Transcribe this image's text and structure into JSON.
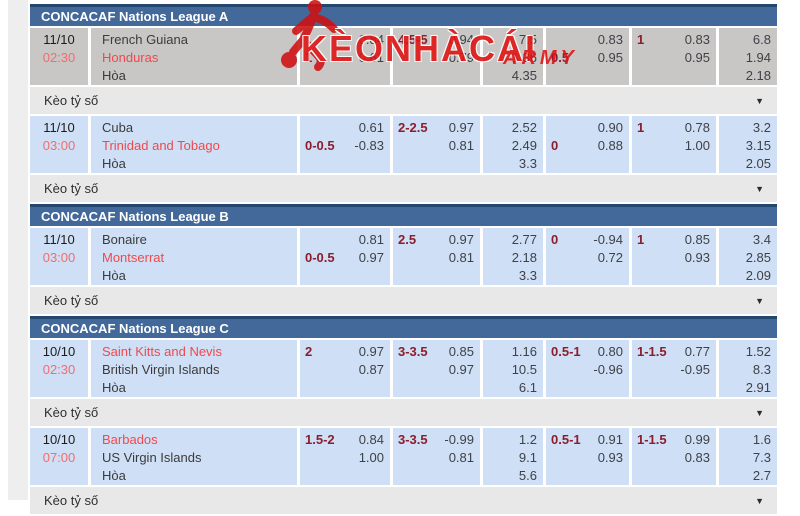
{
  "watermark": {
    "brand": "KèoNhàCái",
    "suffix": "ARMY"
  },
  "score_bet_label": "Kèo tỷ số",
  "icons": {
    "chevron_down": "▼",
    "footballer": "footballer-kicking-ball"
  },
  "colors": {
    "header_bg": "#43689a",
    "header_border": "#24476f",
    "row_gray": "#c9c6c6",
    "row_blue": "#cfdff5",
    "keo_bg": "#e9e8e8",
    "favorite_red": "#f0494d",
    "time_red": "#f26d6d",
    "handicap_maroon": "#8b1e2d",
    "watermark_red": "#e01212"
  },
  "sections": [
    {
      "title": "CONCACAF Nations League A",
      "matches": [
        {
          "date": "11/10",
          "time": "02:30",
          "home": "French Guiana",
          "away": "Honduras",
          "draw": "Hòa",
          "red": "away",
          "bg": "gray",
          "hc": {
            "val": "1",
            "line": 2,
            "o1": "0.84",
            "o2": "0.61"
          },
          "ou": {
            "val": "4.5-5",
            "line": 1,
            "o1": "0.94",
            "o2": "0.79"
          },
          "x12": [
            "7.5",
            "1.36",
            "4.35"
          ],
          "hc2": {
            "val": "0.5",
            "line": 2,
            "o1": "0.83",
            "o2": "0.95"
          },
          "hc3": {
            "val": "1",
            "line": 1,
            "o1": "0.83",
            "o2": "0.95"
          },
          "x12b": [
            "6.8",
            "1.94",
            "2.18"
          ]
        },
        {
          "date": "11/10",
          "time": "03:00",
          "home": "Cuba",
          "away": "Trinidad and Tobago",
          "draw": "Hòa",
          "red": "away",
          "bg": "blue",
          "hc": {
            "val": "0-0.5",
            "line": 2,
            "o1": "0.61",
            "o2": "-0.83"
          },
          "ou": {
            "val": "2-2.5",
            "line": 1,
            "o1": "0.97",
            "o2": "0.81"
          },
          "x12": [
            "2.52",
            "2.49",
            "3.3"
          ],
          "hc2": {
            "val": "0",
            "line": 2,
            "o1": "0.90",
            "o2": "0.88"
          },
          "hc3": {
            "val": "1",
            "line": 1,
            "o1": "0.78",
            "o2": "1.00"
          },
          "x12b": [
            "3.2",
            "3.15",
            "2.05"
          ]
        }
      ]
    },
    {
      "title": "CONCACAF Nations League B",
      "matches": [
        {
          "date": "11/10",
          "time": "03:00",
          "home": "Bonaire",
          "away": "Montserrat",
          "draw": "Hòa",
          "red": "away",
          "bg": "blue",
          "hc": {
            "val": "0-0.5",
            "line": 2,
            "o1": "0.81",
            "o2": "0.97"
          },
          "ou": {
            "val": "2.5",
            "line": 1,
            "o1": "0.97",
            "o2": "0.81"
          },
          "x12": [
            "2.77",
            "2.18",
            "3.3"
          ],
          "hc2": {
            "val": "0",
            "line": 1,
            "o1": "-0.94",
            "o2": "0.72"
          },
          "hc3": {
            "val": "1",
            "line": 1,
            "o1": "0.85",
            "o2": "0.93"
          },
          "x12b": [
            "3.4",
            "2.85",
            "2.09"
          ]
        }
      ]
    },
    {
      "title": "CONCACAF Nations League C",
      "matches": [
        {
          "date": "10/10",
          "time": "02:30",
          "home": "Saint Kitts and Nevis",
          "away": "British Virgin Islands",
          "draw": "Hòa",
          "red": "home",
          "bg": "blue",
          "hc": {
            "val": "2",
            "line": 1,
            "o1": "0.97",
            "o2": "0.87"
          },
          "ou": {
            "val": "3-3.5",
            "line": 1,
            "o1": "0.85",
            "o2": "0.97"
          },
          "x12": [
            "1.16",
            "10.5",
            "6.1"
          ],
          "hc2": {
            "val": "0.5-1",
            "line": 1,
            "o1": "0.80",
            "o2": "-0.96"
          },
          "hc3": {
            "val": "1-1.5",
            "line": 1,
            "o1": "0.77",
            "o2": "-0.95"
          },
          "x12b": [
            "1.52",
            "8.3",
            "2.91"
          ]
        },
        {
          "date": "10/10",
          "time": "07:00",
          "home": "Barbados",
          "away": "US Virgin Islands",
          "draw": "Hòa",
          "red": "home",
          "bg": "blue",
          "hc": {
            "val": "1.5-2",
            "line": 1,
            "o1": "0.84",
            "o2": "1.00"
          },
          "ou": {
            "val": "3-3.5",
            "line": 1,
            "o1": "-0.99",
            "o2": "0.81"
          },
          "x12": [
            "1.2",
            "9.1",
            "5.6"
          ],
          "hc2": {
            "val": "0.5-1",
            "line": 1,
            "o1": "0.91",
            "o2": "0.93"
          },
          "hc3": {
            "val": "1-1.5",
            "line": 1,
            "o1": "0.99",
            "o2": "0.83"
          },
          "x12b": [
            "1.6",
            "7.3",
            "2.7"
          ]
        }
      ]
    }
  ]
}
